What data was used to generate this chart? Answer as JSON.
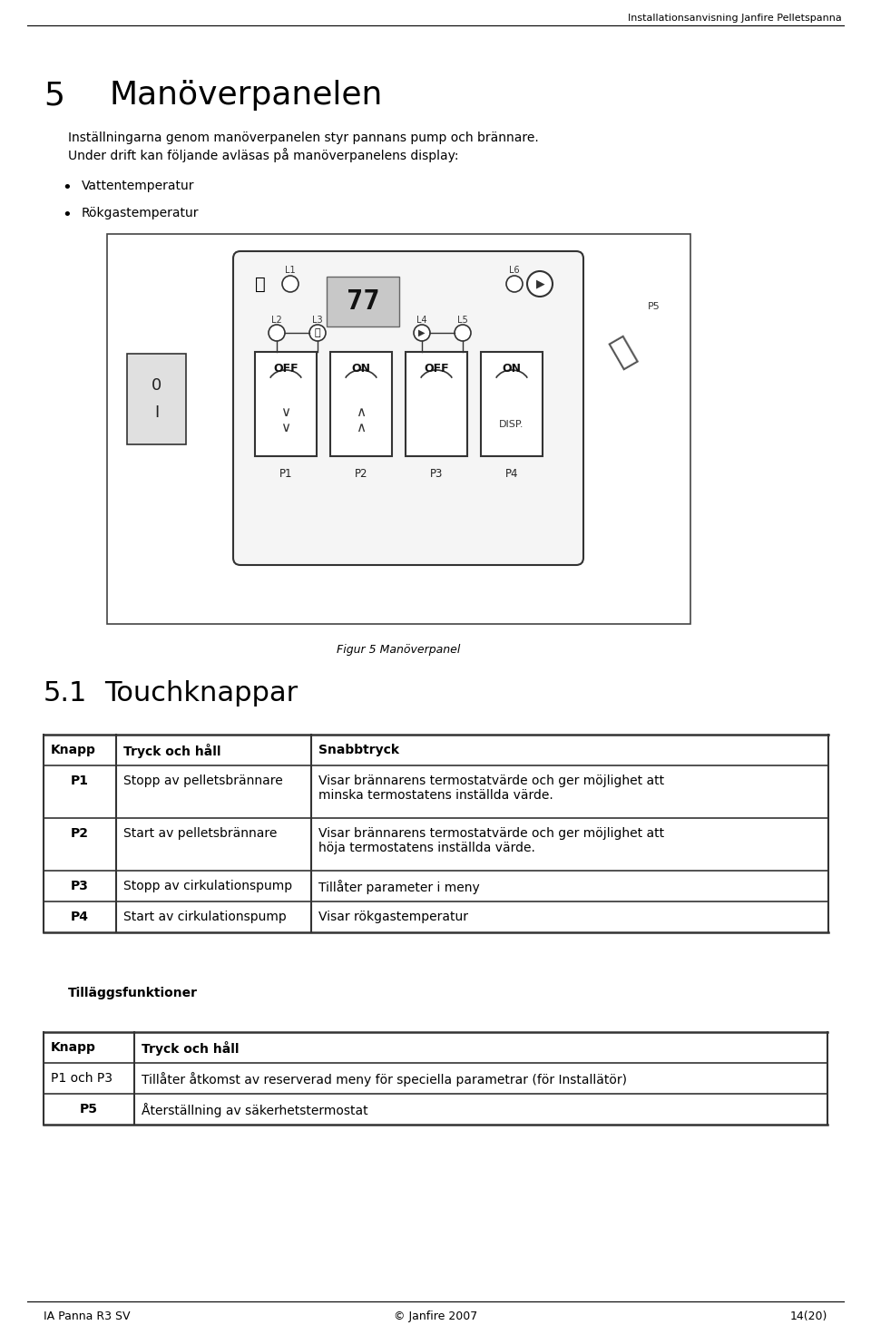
{
  "header_text": "Installationsanvisning Janfire Pelletspanna",
  "chapter_num": "5",
  "chapter_title": "Manöverpanelen",
  "intro_line1": "Inställningarna genom manöverpanelen styr pannans pump och brännare.",
  "intro_line2": "Under drift kan följande avläsas på manöverpanelens display:",
  "bullets": [
    "Vattentemperatur",
    "Rökgastemperatur"
  ],
  "figure_caption": "Figur 5 Manöverpanel",
  "section_num": "5.1",
  "section_title": "Touchknappar",
  "table1_headers": [
    "Knapp",
    "Tryck och håll",
    "Snabbtryck"
  ],
  "table1_rows": [
    [
      "P1",
      "Stopp av pelletsbrännare",
      "Visar brännarens termostatvärde och ger möjlighet att\nminska termostatens inställda värde."
    ],
    [
      "P2",
      "Start av pelletsbrännare",
      "Visar brännarens termostatvärde och ger möjlighet att\nhöja termostatens inställda värde."
    ],
    [
      "P3",
      "Stopp av cirkulationspump",
      "Tillåter parameter i meny"
    ],
    [
      "P4",
      "Start av cirkulationspump",
      "Visar rökgastemperatur"
    ]
  ],
  "tillagg_title": "Tilläggsfunktioner",
  "table2_headers": [
    "Knapp",
    "Tryck och håll"
  ],
  "table2_rows": [
    [
      "P1 och P3",
      "Tillåter åtkomst av reserverad meny för speciella parametrar (för Installätör)"
    ],
    [
      "P5",
      "Återställning av säkerhetstermostat"
    ]
  ],
  "footer_left": "IA Panna R3 SV",
  "footer_center": "© Janfire 2007",
  "footer_right": "14(20)",
  "bg_color": "#ffffff"
}
